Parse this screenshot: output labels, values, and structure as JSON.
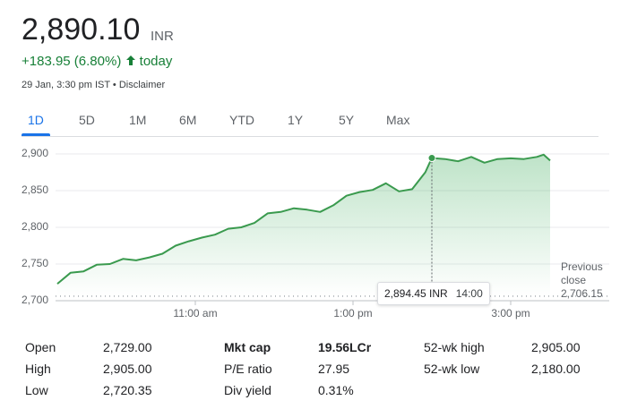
{
  "header": {
    "price": "2,890.10",
    "currency": "INR",
    "change": "+183.95 (6.80%)",
    "change_period": "today",
    "timestamp": "29 Jan, 3:30 pm IST",
    "separator": "•",
    "disclaimer": "Disclaimer"
  },
  "tabs": [
    "1D",
    "5D",
    "1M",
    "6M",
    "YTD",
    "1Y",
    "5Y",
    "Max"
  ],
  "chart_data": {
    "type": "line",
    "color": "#3a9a4e",
    "x": [
      "09:15",
      "09:25",
      "09:35",
      "09:45",
      "09:55",
      "10:05",
      "10:15",
      "10:25",
      "10:35",
      "10:45",
      "10:55",
      "11:05",
      "11:15",
      "11:25",
      "11:35",
      "11:45",
      "11:55",
      "12:05",
      "12:15",
      "12:25",
      "12:35",
      "12:45",
      "12:55",
      "13:05",
      "13:15",
      "13:25",
      "13:35",
      "13:45",
      "13:55",
      "14:00",
      "14:10",
      "14:20",
      "14:30",
      "14:40",
      "14:50",
      "15:00",
      "15:10",
      "15:20",
      "15:25",
      "15:30"
    ],
    "values": [
      2723,
      2738,
      2740,
      2749,
      2750,
      2757,
      2755,
      2759,
      2764,
      2775,
      2781,
      2786,
      2790,
      2798,
      2800,
      2806,
      2819,
      2821,
      2826,
      2824,
      2821,
      2830,
      2843,
      2848,
      2851,
      2860,
      2849,
      2852,
      2875,
      2894.45,
      2893,
      2890,
      2896,
      2888,
      2893,
      2894,
      2893,
      2896,
      2899,
      2891
    ],
    "xlim": [
      "09:15",
      "15:30"
    ],
    "xticks": [
      {
        "value": "11:00",
        "label": "11:00 am"
      },
      {
        "value": "13:00",
        "label": "1:00 pm"
      },
      {
        "value": "15:00",
        "label": "3:00 pm"
      }
    ],
    "ylim": [
      2700,
      2915
    ],
    "yticks": [
      {
        "value": 2700,
        "label": "2,700"
      },
      {
        "value": 2750,
        "label": "2,750"
      },
      {
        "value": 2800,
        "label": "2,800"
      },
      {
        "value": 2850,
        "label": "2,850"
      },
      {
        "value": 2900,
        "label": "2,900"
      }
    ],
    "grid": true,
    "reference_line": {
      "label": "Previous close",
      "value": 2706.15,
      "value_label": "2,706.15"
    },
    "tooltip": {
      "x": "14:00",
      "value": 2894.45,
      "label": "2,894.45 INR"
    }
  },
  "stats": [
    [
      [
        "Open",
        "2,729.00"
      ],
      [
        "High",
        "2,905.00"
      ],
      [
        "Low",
        "2,720.35"
      ]
    ],
    [
      [
        "Mkt cap",
        "19.56LCr"
      ],
      [
        "P/E ratio",
        "27.95"
      ],
      [
        "Div yield",
        "0.31%"
      ]
    ],
    [
      [
        "52-wk high",
        "2,905.00"
      ],
      [
        "52-wk low",
        "2,180.00"
      ]
    ]
  ]
}
